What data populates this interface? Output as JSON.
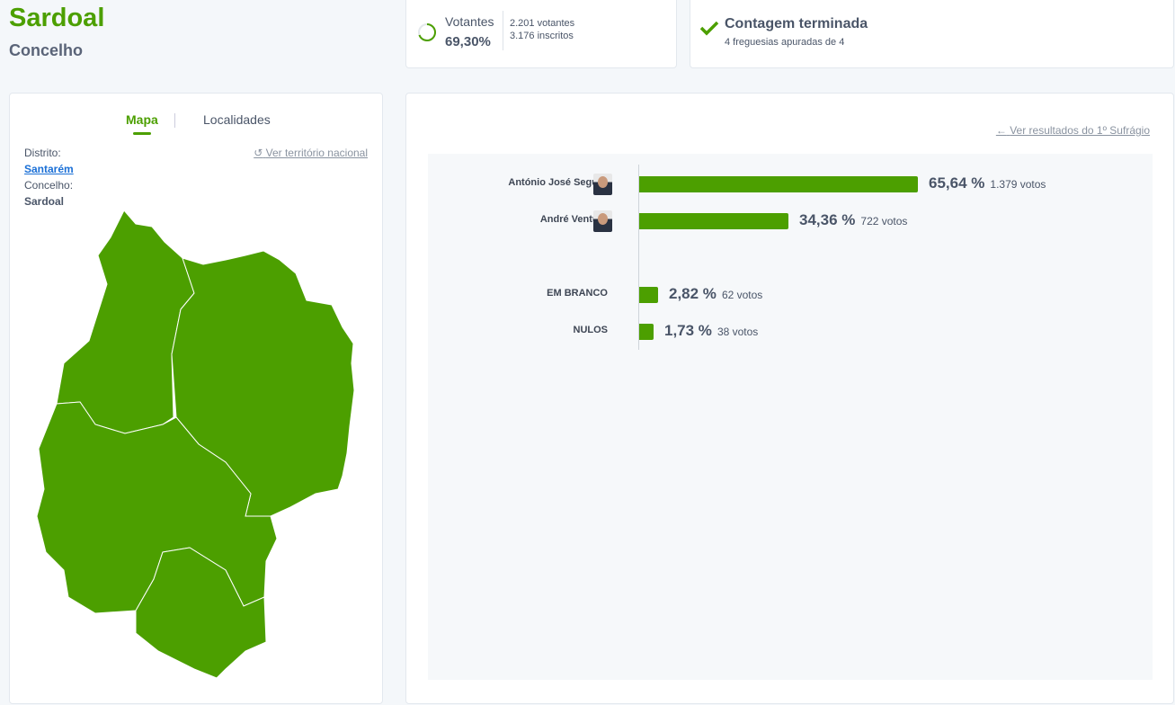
{
  "header": {
    "title": "Sardoal",
    "subtitle": "Concelho"
  },
  "turnout": {
    "label": "Votantes",
    "percent": "69,30%",
    "percent_value": 69.3,
    "voters": "2.201 votantes",
    "registered": "3.176 inscritos"
  },
  "count": {
    "title": "Contagem terminada",
    "detail": "4 freguesias apuradas de 4"
  },
  "map_panel": {
    "tabs": [
      "Mapa",
      "Localidades"
    ],
    "active_tab": "Mapa",
    "national_link": "Ver território nacional",
    "district_label": "Distrito:",
    "district": "Santarém",
    "municipality_label": "Concelho:",
    "municipality": "Sardoal",
    "fill_color": "#4c9f00"
  },
  "results": {
    "first_round_link": "Ver resultados do 1º Sufrágio",
    "rows": [
      {
        "name": "António José Seguro",
        "pct": "65,64 %",
        "value": 65.64,
        "votes": "1.379 votos",
        "avatar": true
      },
      {
        "name": "André Ventura",
        "pct": "34,36 %",
        "value": 34.36,
        "votes": "722 votos",
        "avatar": true
      },
      {
        "name": "EM BRANCO",
        "pct": "2,82 %",
        "value": 2.82,
        "votes": "62 votos",
        "avatar": false
      },
      {
        "name": "NULOS",
        "pct": "1,73 %",
        "value": 1.73,
        "votes": "38 votos",
        "avatar": false
      }
    ]
  }
}
